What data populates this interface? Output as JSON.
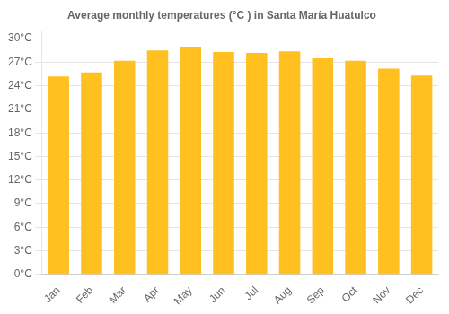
{
  "chart_data": {
    "type": "bar",
    "title": "Average monthly temperatures (°C ) in Santa María Huatulco",
    "categories": [
      "Jan",
      "Feb",
      "Mar",
      "Apr",
      "May",
      "Jun",
      "Jul",
      "Aug",
      "Sep",
      "Oct",
      "Nov",
      "Dec"
    ],
    "values": [
      25.2,
      25.7,
      27.2,
      28.5,
      29.0,
      28.3,
      28.2,
      28.4,
      27.5,
      27.2,
      26.2,
      25.3
    ],
    "color": "#FFC020",
    "ylim": [
      0,
      31
    ],
    "yticks": [
      {
        "value": 0,
        "label": "0°C"
      },
      {
        "value": 3,
        "label": "3°C"
      },
      {
        "value": 6,
        "label": "6°C"
      },
      {
        "value": 9,
        "label": "9°C"
      },
      {
        "value": 12,
        "label": "12°C"
      },
      {
        "value": 15,
        "label": "15°C"
      },
      {
        "value": 18,
        "label": "18°C"
      },
      {
        "value": 21,
        "label": "21°C"
      },
      {
        "value": 24,
        "label": "24°C"
      },
      {
        "value": 27,
        "label": "27°C"
      },
      {
        "value": 30,
        "label": "30°C"
      }
    ],
    "grid": true
  }
}
